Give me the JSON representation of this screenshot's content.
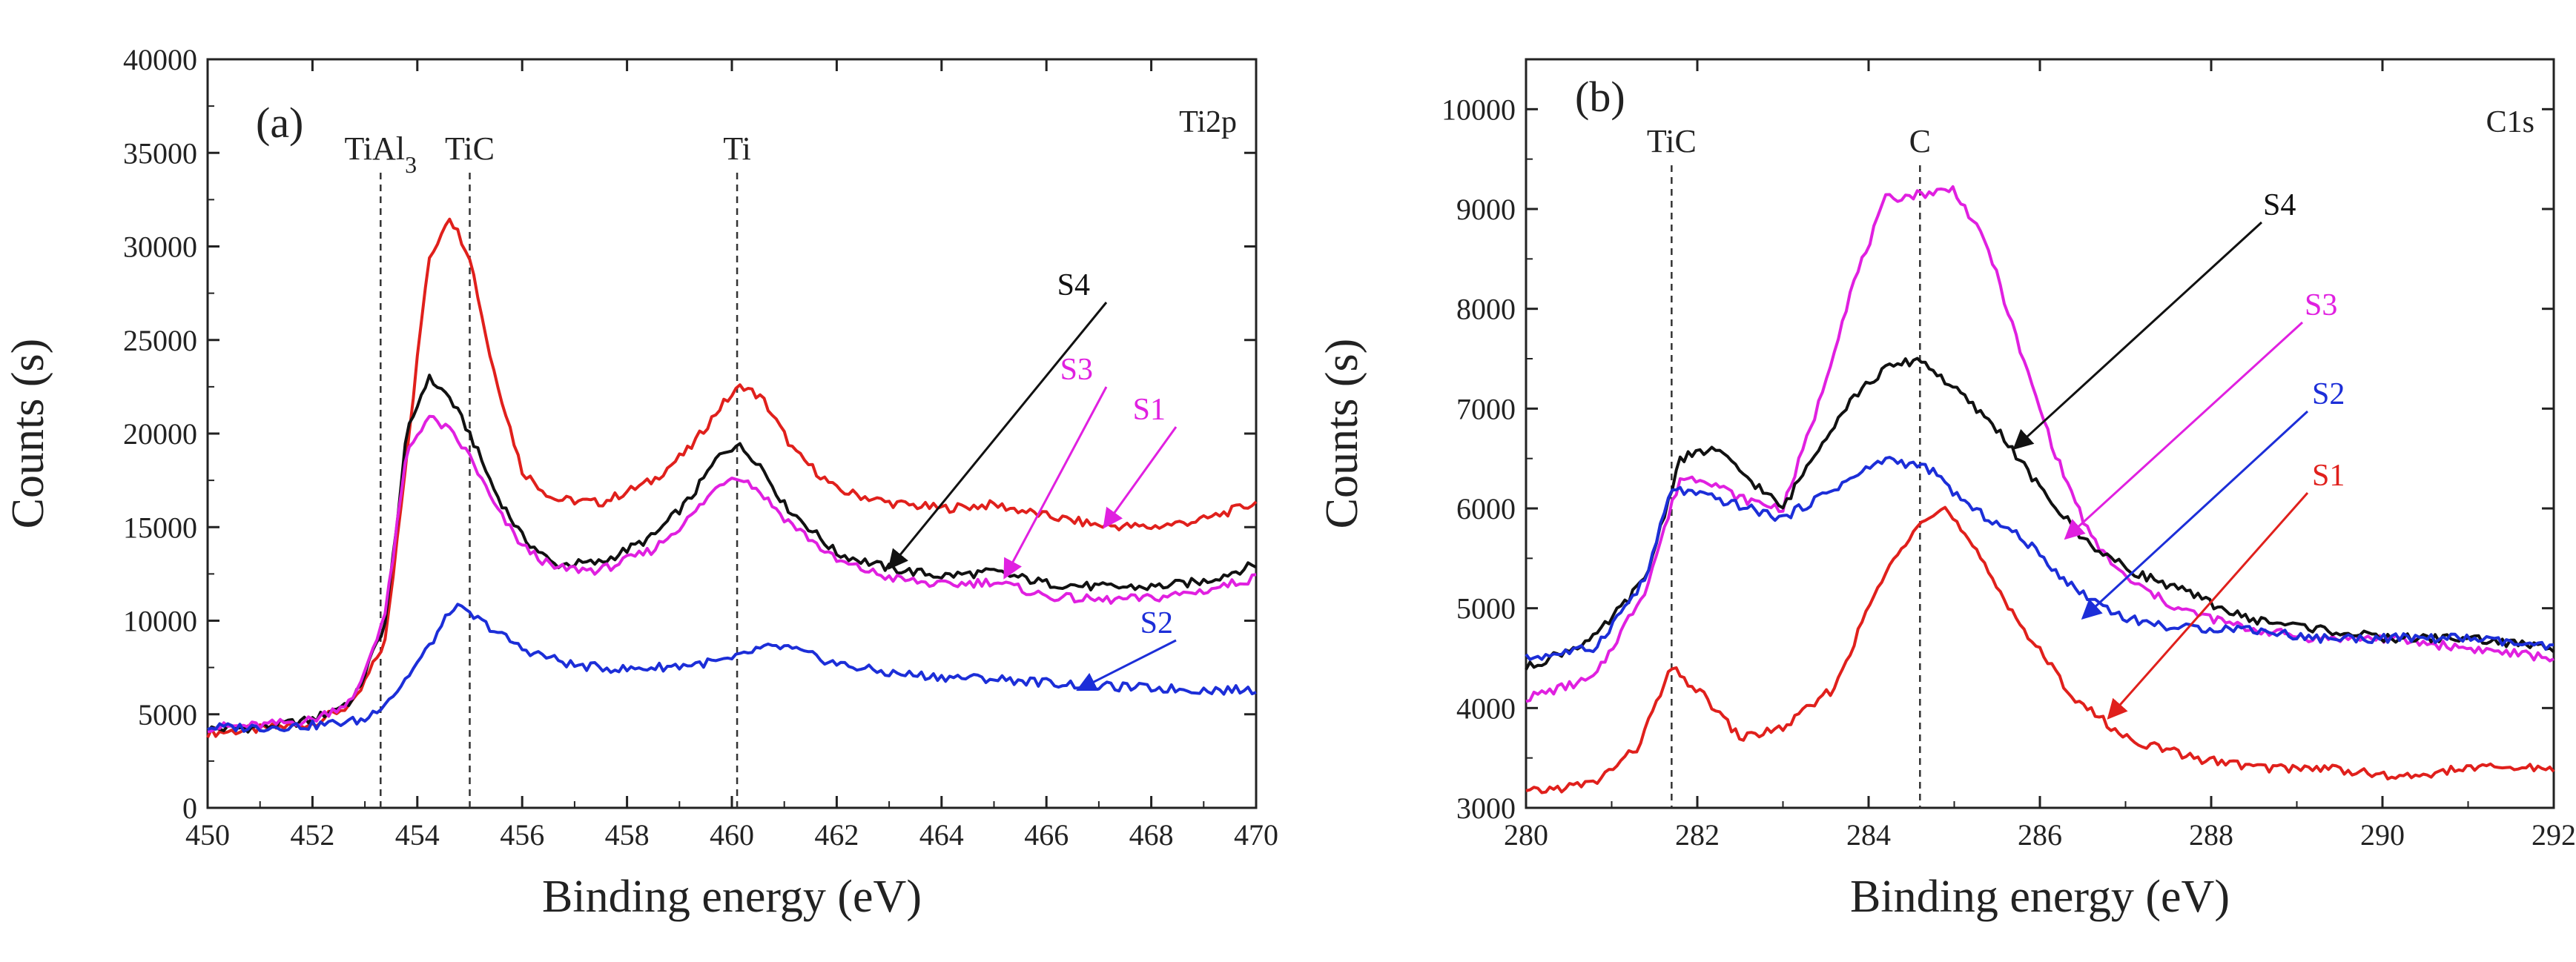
{
  "chart_data": [
    {
      "panel": "(a)",
      "type": "line",
      "corner_label": "Ti2p",
      "xlabel": "Binding energy (eV)",
      "ylabel": "Counts (s)",
      "xlim": [
        450,
        470
      ],
      "ylim": [
        0,
        40000
      ],
      "xticks": [
        450,
        452,
        454,
        456,
        458,
        460,
        462,
        464,
        466,
        468,
        470
      ],
      "yticks": [
        0,
        5000,
        10000,
        15000,
        20000,
        25000,
        30000,
        35000,
        40000
      ],
      "reference_lines": [
        {
          "x": 453.3,
          "label": "TiAl",
          "sub": "3"
        },
        {
          "x": 455.0,
          "label": "TiC"
        },
        {
          "x": 460.1,
          "label": "Ti"
        }
      ],
      "series": [
        {
          "name": "S1",
          "color": "#e0201c",
          "points": [
            [
              450,
              4000
            ],
            [
              451,
              4200
            ],
            [
              452,
              4500
            ],
            [
              452.8,
              5600
            ],
            [
              453.4,
              9000
            ],
            [
              453.8,
              19000
            ],
            [
              454.2,
              29000
            ],
            [
              454.6,
              31700
            ],
            [
              455,
              29500
            ],
            [
              455.4,
              24000
            ],
            [
              456,
              18000
            ],
            [
              456.6,
              16500
            ],
            [
              457.5,
              16300
            ],
            [
              458.5,
              17500
            ],
            [
              459.2,
              19200
            ],
            [
              459.8,
              21500
            ],
            [
              460.2,
              22600
            ],
            [
              460.6,
              21800
            ],
            [
              461.2,
              19000
            ],
            [
              462,
              17000
            ],
            [
              463,
              16300
            ],
            [
              464,
              16000
            ],
            [
              465,
              16200
            ],
            [
              466,
              15600
            ],
            [
              467,
              15100
            ],
            [
              468,
              15000
            ],
            [
              469,
              15400
            ],
            [
              470,
              16300
            ]
          ]
        },
        {
          "name": "S4",
          "color": "#111111",
          "points": [
            [
              450,
              4200
            ],
            [
              451,
              4300
            ],
            [
              452,
              4700
            ],
            [
              452.8,
              5800
            ],
            [
              453.4,
              10000
            ],
            [
              453.8,
              20000
            ],
            [
              454.2,
              23000
            ],
            [
              454.6,
              22000
            ],
            [
              455,
              20000
            ],
            [
              455.5,
              16800
            ],
            [
              456,
              14500
            ],
            [
              456.6,
              13000
            ],
            [
              457.5,
              13100
            ],
            [
              458.5,
              14500
            ],
            [
              459.2,
              16500
            ],
            [
              459.8,
              19000
            ],
            [
              460.1,
              19400
            ],
            [
              460.5,
              18500
            ],
            [
              461,
              16200
            ],
            [
              462,
              13600
            ],
            [
              463,
              12800
            ],
            [
              464,
              12400
            ],
            [
              465,
              12600
            ],
            [
              466,
              12000
            ],
            [
              467,
              11800
            ],
            [
              468,
              11800
            ],
            [
              469,
              12100
            ],
            [
              470,
              13000
            ]
          ]
        },
        {
          "name": "S3",
          "color": "#e020e0",
          "points": [
            [
              450,
              4300
            ],
            [
              451,
              4400
            ],
            [
              452,
              4700
            ],
            [
              452.8,
              5800
            ],
            [
              453.4,
              10500
            ],
            [
              453.8,
              19000
            ],
            [
              454.2,
              20900
            ],
            [
              454.6,
              20200
            ],
            [
              455,
              18800
            ],
            [
              455.5,
              16000
            ],
            [
              456,
              14000
            ],
            [
              456.6,
              12800
            ],
            [
              457.5,
              12700
            ],
            [
              458.5,
              13800
            ],
            [
              459.2,
              15500
            ],
            [
              459.8,
              17400
            ],
            [
              460.1,
              17800
            ],
            [
              460.5,
              17000
            ],
            [
              461,
              15500
            ],
            [
              462,
              13200
            ],
            [
              463,
              12300
            ],
            [
              464,
              11900
            ],
            [
              465,
              12100
            ],
            [
              466,
              11300
            ],
            [
              467,
              11100
            ],
            [
              468,
              11200
            ],
            [
              469,
              11600
            ],
            [
              470,
              12300
            ]
          ]
        },
        {
          "name": "S2",
          "color": "#1c2ed8",
          "points": [
            [
              450,
              4300
            ],
            [
              451,
              4300
            ],
            [
              452,
              4400
            ],
            [
              453,
              4700
            ],
            [
              453.6,
              6200
            ],
            [
              454.2,
              8500
            ],
            [
              454.7,
              10800
            ],
            [
              455.2,
              10000
            ],
            [
              456,
              8500
            ],
            [
              457,
              7600
            ],
            [
              458,
              7400
            ],
            [
              459,
              7600
            ],
            [
              460,
              7900
            ],
            [
              460.5,
              8500
            ],
            [
              461,
              8600
            ],
            [
              462,
              7700
            ],
            [
              463,
              7200
            ],
            [
              464,
              7000
            ],
            [
              465,
              6900
            ],
            [
              466,
              6700
            ],
            [
              467,
              6500
            ],
            [
              468,
              6400
            ],
            [
              469,
              6300
            ],
            [
              470,
              6300
            ]
          ]
        }
      ],
      "annotations": [
        {
          "text": "S4",
          "color": "#111111",
          "to": [
            463,
            12800
          ]
        },
        {
          "text": "S3",
          "color": "#e020e0",
          "to": [
            465.2,
            12300
          ]
        },
        {
          "text": "S1",
          "color": "#e020e0",
          "to": [
            467.1,
            15000
          ]
        },
        {
          "text": "S2",
          "color": "#1c2ed8",
          "to": [
            466.6,
            6300
          ]
        }
      ]
    },
    {
      "panel": "(b)",
      "type": "line",
      "corner_label": "C1s",
      "xlabel": "Binding energy (eV)",
      "ylabel": "Counts (s)",
      "xlim": [
        280,
        292
      ],
      "ylim": [
        3000,
        10500
      ],
      "xticks": [
        280,
        282,
        284,
        286,
        288,
        290,
        292
      ],
      "yticks": [
        3000,
        4000,
        5000,
        6000,
        7000,
        8000,
        9000,
        10000
      ],
      "reference_lines": [
        {
          "x": 281.7,
          "label": "TiC"
        },
        {
          "x": 284.6,
          "label": "C"
        }
      ],
      "series": [
        {
          "name": "S3",
          "color": "#e020e0",
          "points": [
            [
              280,
              4100
            ],
            [
              280.8,
              4300
            ],
            [
              281.4,
              5200
            ],
            [
              281.8,
              6300
            ],
            [
              282.1,
              6300
            ],
            [
              282.5,
              6100
            ],
            [
              283,
              6000
            ],
            [
              283.4,
              7000
            ],
            [
              283.8,
              8200
            ],
            [
              284.2,
              9100
            ],
            [
              284.6,
              9150
            ],
            [
              285,
              9200
            ],
            [
              285.4,
              8600
            ],
            [
              285.8,
              7500
            ],
            [
              286.2,
              6500
            ],
            [
              286.6,
              5700
            ],
            [
              287,
              5300
            ],
            [
              287.6,
              5000
            ],
            [
              288.4,
              4800
            ],
            [
              289.2,
              4700
            ],
            [
              290,
              4700
            ],
            [
              291,
              4600
            ],
            [
              292,
              4500
            ]
          ]
        },
        {
          "name": "S4",
          "color": "#111111",
          "points": [
            [
              280,
              4400
            ],
            [
              280.8,
              4700
            ],
            [
              281.4,
              5300
            ],
            [
              281.8,
              6500
            ],
            [
              282.2,
              6600
            ],
            [
              282.6,
              6300
            ],
            [
              283,
              6000
            ],
            [
              283.4,
              6600
            ],
            [
              283.8,
              7100
            ],
            [
              284.2,
              7400
            ],
            [
              284.6,
              7500
            ],
            [
              285,
              7200
            ],
            [
              285.5,
              6800
            ],
            [
              286,
              6200
            ],
            [
              286.5,
              5700
            ],
            [
              287,
              5400
            ],
            [
              287.6,
              5200
            ],
            [
              288.4,
              4900
            ],
            [
              289.2,
              4800
            ],
            [
              290,
              4700
            ],
            [
              291,
              4700
            ],
            [
              292,
              4600
            ]
          ]
        },
        {
          "name": "S2",
          "color": "#1c2ed8",
          "points": [
            [
              280,
              4500
            ],
            [
              280.8,
              4600
            ],
            [
              281.4,
              5300
            ],
            [
              281.7,
              6200
            ],
            [
              282.2,
              6100
            ],
            [
              282.6,
              6000
            ],
            [
              283,
              5900
            ],
            [
              283.6,
              6200
            ],
            [
              284.2,
              6500
            ],
            [
              284.7,
              6400
            ],
            [
              285.2,
              6000
            ],
            [
              285.8,
              5700
            ],
            [
              286.4,
              5200
            ],
            [
              287,
              4900
            ],
            [
              287.6,
              4800
            ],
            [
              288.4,
              4800
            ],
            [
              289.2,
              4700
            ],
            [
              290,
              4700
            ],
            [
              291,
              4700
            ],
            [
              292,
              4600
            ]
          ]
        },
        {
          "name": "S1",
          "color": "#e0201c",
          "points": [
            [
              280,
              3150
            ],
            [
              280.8,
              3250
            ],
            [
              281.3,
              3600
            ],
            [
              281.7,
              4400
            ],
            [
              282.1,
              4100
            ],
            [
              282.5,
              3700
            ],
            [
              283,
              3800
            ],
            [
              283.6,
              4200
            ],
            [
              284.1,
              5200
            ],
            [
              284.6,
              5900
            ],
            [
              284.9,
              6000
            ],
            [
              285.3,
              5500
            ],
            [
              285.8,
              4800
            ],
            [
              286.4,
              4100
            ],
            [
              287,
              3700
            ],
            [
              287.8,
              3500
            ],
            [
              288.6,
              3400
            ],
            [
              289.4,
              3400
            ],
            [
              290.2,
              3300
            ],
            [
              291,
              3400
            ],
            [
              292,
              3400
            ]
          ]
        }
      ],
      "annotations": [
        {
          "text": "S4",
          "color": "#111111",
          "to": [
            285.7,
            6600
          ]
        },
        {
          "text": "S3",
          "color": "#e020e0",
          "to": [
            286.3,
            5700
          ]
        },
        {
          "text": "S2",
          "color": "#1c2ed8",
          "to": [
            286.5,
            4900
          ]
        },
        {
          "text": "S1",
          "color": "#e0201c",
          "to": [
            286.8,
            3900
          ]
        }
      ]
    }
  ]
}
